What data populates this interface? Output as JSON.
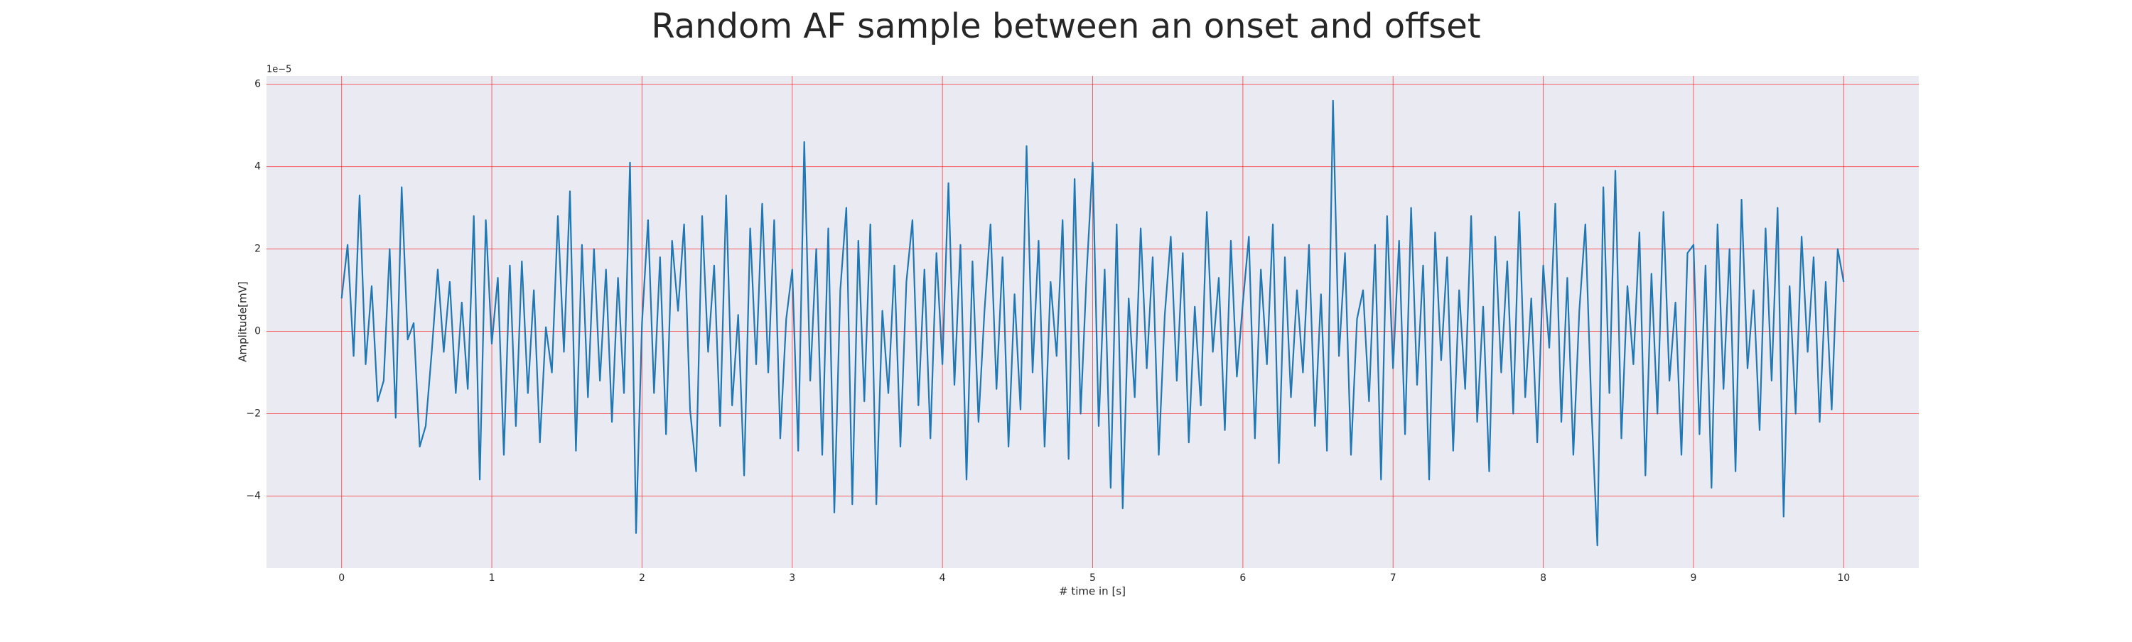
{
  "chart_data": {
    "type": "line",
    "title": "Random AF sample between an onset and offset",
    "x_label": "# time in [s]",
    "y_label": "Amplitude[mV]",
    "y_offset_label": "1e−5",
    "xlim": [
      -0.5,
      10.5
    ],
    "ylim": [
      -5.75,
      6.2
    ],
    "xticks": [
      0,
      1,
      2,
      3,
      4,
      5,
      6,
      7,
      8,
      9,
      10
    ],
    "yticks": [
      {
        "value": -4,
        "label": "−4"
      },
      {
        "value": -2,
        "label": "−2"
      },
      0,
      2,
      4,
      6
    ],
    "grid": true,
    "grid_color": "#ff0000",
    "background": "#eaeaf2",
    "series": [
      {
        "color": "#1f77b4",
        "x": [
          0,
          0.04,
          0.08,
          0.12,
          0.16,
          0.2,
          0.24,
          0.28,
          0.32,
          0.36,
          0.4,
          0.44,
          0.48,
          0.52,
          0.56,
          0.6,
          0.64,
          0.68,
          0.72,
          0.76,
          0.8,
          0.84,
          0.88,
          0.92,
          0.96,
          1,
          1.04,
          1.08,
          1.12,
          1.16,
          1.2,
          1.24,
          1.28,
          1.32,
          1.36,
          1.4,
          1.44,
          1.48,
          1.52,
          1.56,
          1.6,
          1.64,
          1.68,
          1.72,
          1.76,
          1.8,
          1.84,
          1.88,
          1.92,
          1.96,
          2,
          2.04,
          2.08,
          2.12,
          2.16,
          2.2,
          2.24,
          2.28,
          2.32,
          2.36,
          2.4,
          2.44,
          2.48,
          2.52,
          2.56,
          2.6,
          2.64,
          2.68,
          2.72,
          2.76,
          2.8,
          2.84,
          2.88,
          2.92,
          2.96,
          3,
          3.04,
          3.08,
          3.12,
          3.16,
          3.2,
          3.24,
          3.28,
          3.32,
          3.36,
          3.4,
          3.44,
          3.48,
          3.52,
          3.56,
          3.6,
          3.64,
          3.68,
          3.72,
          3.76,
          3.8,
          3.84,
          3.88,
          3.92,
          3.96,
          4,
          4.04,
          4.08,
          4.12,
          4.16,
          4.2,
          4.24,
          4.28,
          4.32,
          4.36,
          4.4,
          4.44,
          4.48,
          4.52,
          4.56,
          4.6,
          4.64,
          4.68,
          4.72,
          4.76,
          4.8,
          4.84,
          4.88,
          4.92,
          4.96,
          5,
          5.04,
          5.08,
          5.12,
          5.16,
          5.2,
          5.24,
          5.28,
          5.32,
          5.36,
          5.4,
          5.44,
          5.48,
          5.52,
          5.56,
          5.6,
          5.64,
          5.68,
          5.72,
          5.76,
          5.8,
          5.84,
          5.88,
          5.92,
          5.96,
          6,
          6.04,
          6.08,
          6.12,
          6.16,
          6.2,
          6.24,
          6.28,
          6.32,
          6.36,
          6.4,
          6.44,
          6.48,
          6.52,
          6.56,
          6.6,
          6.64,
          6.68,
          6.72,
          6.76,
          6.8,
          6.84,
          6.88,
          6.92,
          6.96,
          7,
          7.04,
          7.08,
          7.12,
          7.16,
          7.2,
          7.24,
          7.28,
          7.32,
          7.36,
          7.4,
          7.44,
          7.48,
          7.52,
          7.56,
          7.6,
          7.64,
          7.68,
          7.72,
          7.76,
          7.8,
          7.84,
          7.88,
          7.92,
          7.96,
          8,
          8.04,
          8.08,
          8.12,
          8.16,
          8.2,
          8.24,
          8.28,
          8.32,
          8.36,
          8.4,
          8.44,
          8.48,
          8.52,
          8.56,
          8.6,
          8.64,
          8.68,
          8.72,
          8.76,
          8.8,
          8.84,
          8.88,
          8.92,
          8.96,
          9,
          9.04,
          9.08,
          9.12,
          9.16,
          9.2,
          9.24,
          9.28,
          9.32,
          9.36,
          9.4,
          9.44,
          9.48,
          9.52,
          9.56,
          9.6,
          9.64,
          9.68,
          9.72,
          9.76,
          9.8,
          9.84,
          9.88,
          9.92,
          9.96,
          10
        ],
        "values": [
          0.8,
          2.1,
          -0.6,
          3.3,
          -0.8,
          1.1,
          -1.7,
          -1.2,
          2.0,
          -2.1,
          3.5,
          -0.2,
          0.2,
          -2.8,
          -2.3,
          -0.5,
          1.5,
          -0.5,
          1.2,
          -1.5,
          0.7,
          -1.4,
          2.8,
          -3.6,
          2.7,
          -0.3,
          1.3,
          -3.0,
          1.6,
          -2.3,
          1.7,
          -1.5,
          1.0,
          -2.7,
          0.1,
          -1.0,
          2.8,
          -0.5,
          3.4,
          -2.9,
          2.1,
          -1.6,
          2.0,
          -1.2,
          1.5,
          -2.2,
          1.3,
          -1.5,
          4.1,
          -4.9,
          0.2,
          2.7,
          -1.5,
          1.8,
          -2.5,
          2.2,
          0.5,
          2.6,
          -1.9,
          -3.4,
          2.8,
          -0.5,
          1.6,
          -2.3,
          3.3,
          -1.8,
          0.4,
          -3.5,
          2.5,
          -0.8,
          3.1,
          -1.0,
          2.7,
          -2.6,
          0.3,
          1.5,
          -2.9,
          4.6,
          -1.2,
          2.0,
          -3.0,
          2.5,
          -4.4,
          1.0,
          3.0,
          -4.2,
          2.2,
          -1.7,
          2.6,
          -4.2,
          0.5,
          -1.5,
          1.6,
          -2.8,
          1.2,
          2.7,
          -1.8,
          1.5,
          -2.6,
          1.9,
          -0.8,
          3.6,
          -1.3,
          2.1,
          -3.6,
          1.7,
          -2.2,
          0.5,
          2.6,
          -1.4,
          1.8,
          -2.8,
          0.9,
          -1.9,
          4.5,
          -1.0,
          2.2,
          -2.8,
          1.2,
          -0.6,
          2.7,
          -3.1,
          3.7,
          -2.0,
          1.4,
          4.1,
          -2.3,
          1.5,
          -3.8,
          2.6,
          -4.3,
          0.8,
          -1.6,
          2.5,
          -0.9,
          1.8,
          -3.0,
          0.4,
          2.3,
          -1.2,
          1.9,
          -2.7,
          0.6,
          -1.8,
          2.9,
          -0.5,
          1.3,
          -2.4,
          2.2,
          -1.1,
          0.7,
          2.3,
          -2.6,
          1.5,
          -0.8,
          2.6,
          -3.2,
          1.8,
          -1.6,
          1.0,
          -1.0,
          2.1,
          -2.3,
          0.9,
          -2.9,
          5.6,
          -0.6,
          1.9,
          -3.0,
          0.3,
          1.0,
          -1.7,
          2.1,
          -3.6,
          2.8,
          -0.9,
          2.2,
          -2.5,
          3.0,
          -1.3,
          1.6,
          -3.6,
          2.4,
          -0.7,
          1.8,
          -2.9,
          1.0,
          -1.4,
          2.8,
          -2.2,
          0.6,
          -3.4,
          2.3,
          -1.0,
          1.7,
          -2.0,
          2.9,
          -1.6,
          0.8,
          -2.7,
          1.6,
          -0.4,
          3.1,
          -2.2,
          1.3,
          -3.0,
          0.5,
          2.6,
          -1.8,
          -5.2,
          3.5,
          -1.5,
          3.9,
          -2.6,
          1.1,
          -0.8,
          2.4,
          -3.5,
          1.4,
          -2.0,
          2.9,
          -1.2,
          0.7,
          -3.0,
          1.9,
          2.1,
          -2.5,
          1.6,
          -3.8,
          2.6,
          -1.4,
          2.0,
          -3.4,
          3.2,
          -0.9,
          1.0,
          -2.4,
          2.5,
          -1.2,
          3.0,
          -4.5,
          1.1,
          -2.0,
          2.3,
          -0.5,
          1.8,
          -2.2,
          1.2,
          -1.9,
          2.0,
          1.2
        ]
      }
    ]
  }
}
